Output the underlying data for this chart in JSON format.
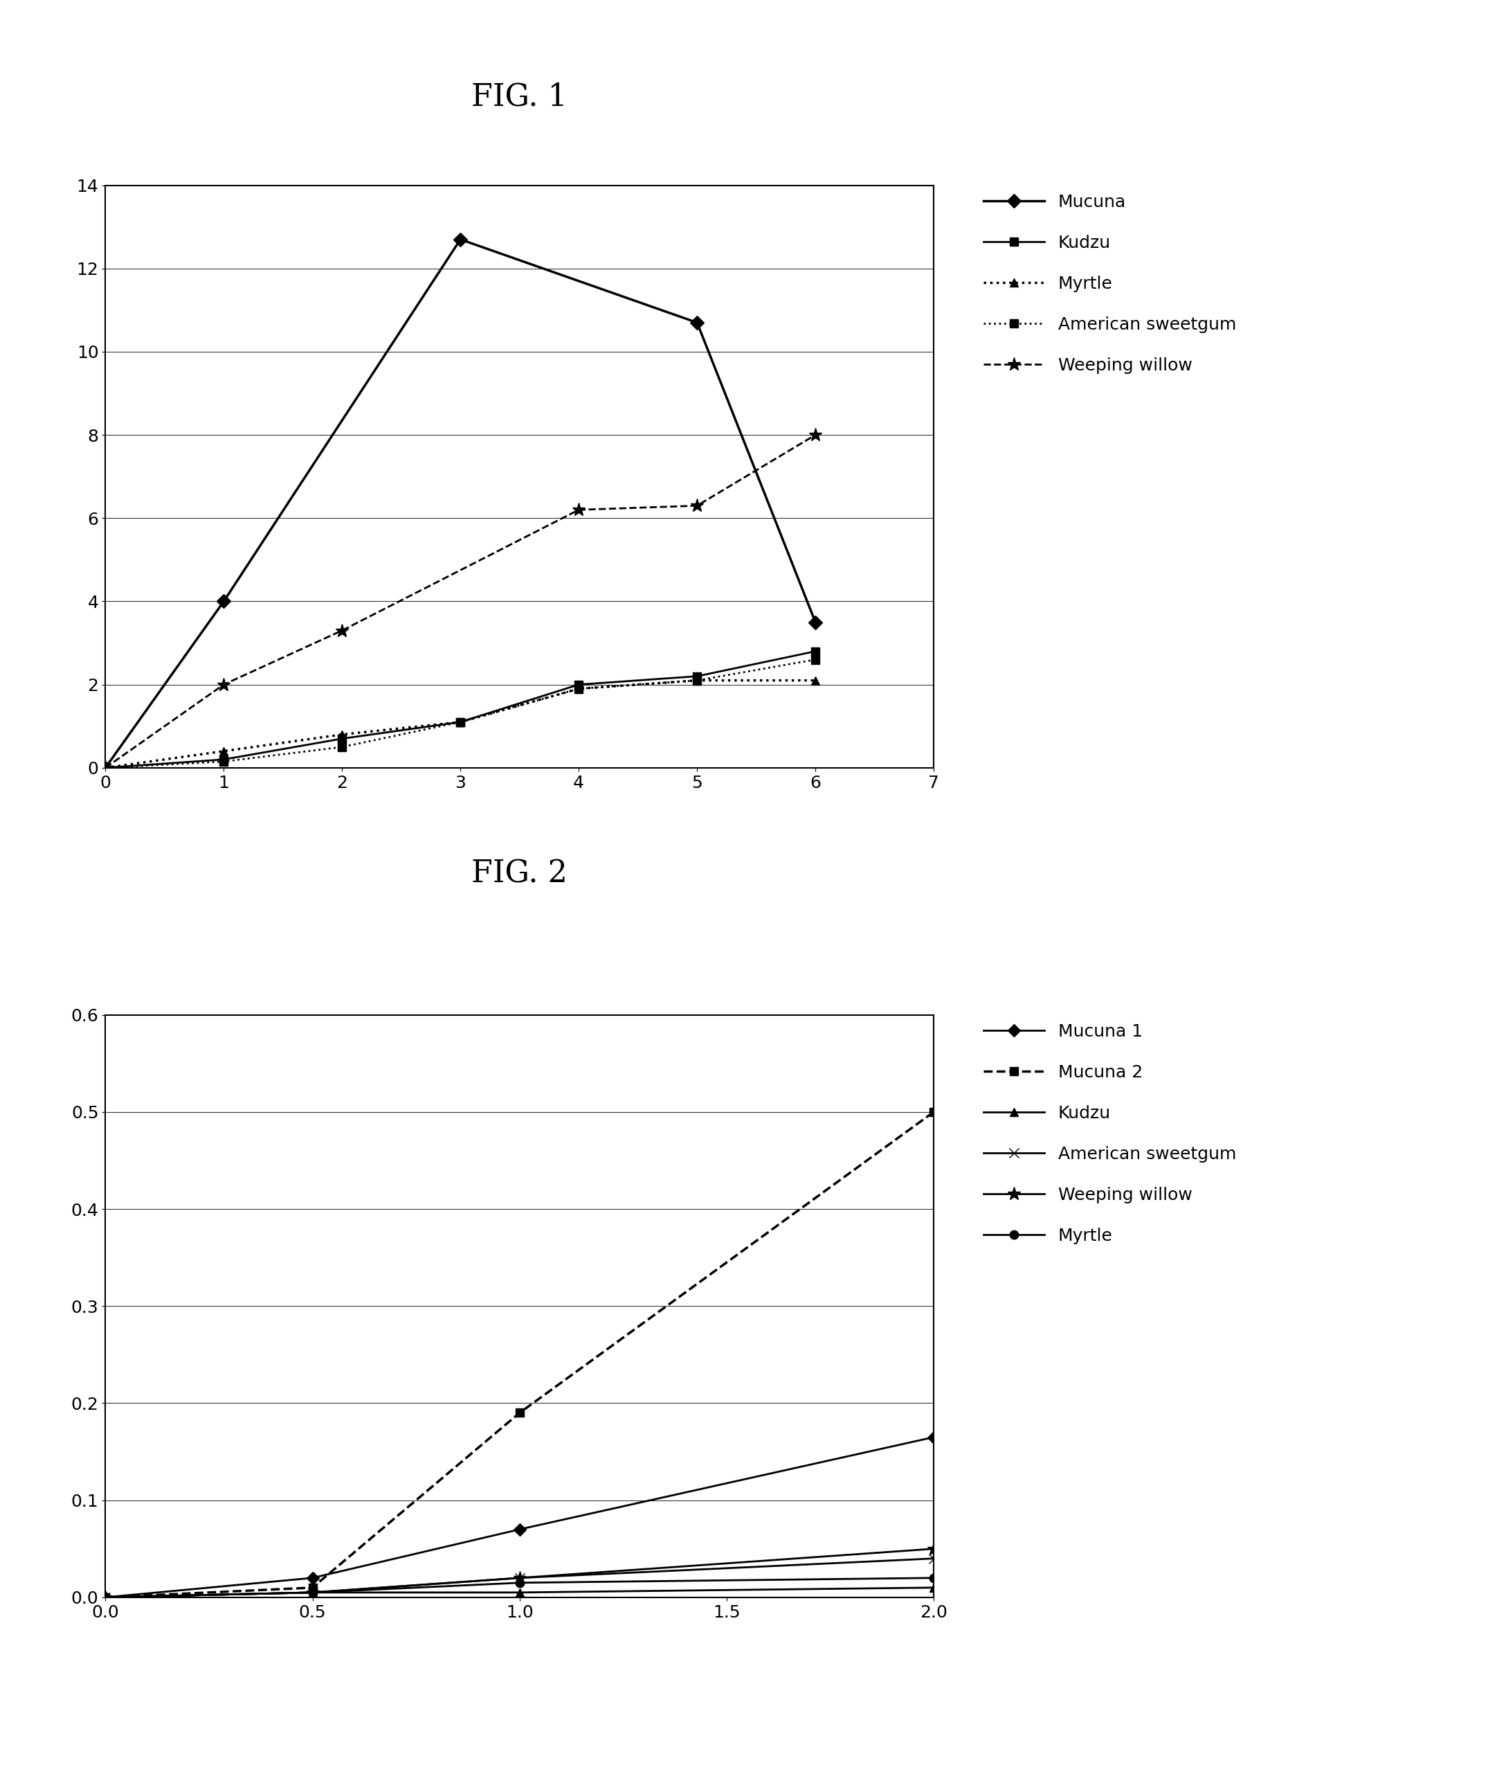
{
  "fig1": {
    "title": "FIG. 1",
    "title_fontsize": 32,
    "series": [
      {
        "label": "Mucuna",
        "x": [
          0,
          1,
          3,
          5,
          6
        ],
        "y": [
          0,
          4,
          12.7,
          10.7,
          3.5
        ],
        "linestyle": "-",
        "marker": "D",
        "markersize": 10,
        "linewidth": 2.5,
        "color": "black"
      },
      {
        "label": "Kudzu",
        "x": [
          0,
          1,
          2,
          3,
          4,
          5,
          6
        ],
        "y": [
          0,
          0.2,
          0.7,
          1.1,
          2.0,
          2.2,
          2.8
        ],
        "linestyle": "-",
        "marker": "s",
        "markersize": 9,
        "linewidth": 2.0,
        "color": "black"
      },
      {
        "label": "Myrtle",
        "x": [
          0,
          1,
          2,
          3,
          4,
          5,
          6
        ],
        "y": [
          0,
          0.4,
          0.8,
          1.1,
          1.9,
          2.1,
          2.1
        ],
        "linestyle": ":",
        "marker": "^",
        "markersize": 9,
        "linewidth": 2.5,
        "color": "black"
      },
      {
        "label": "American sweetgum",
        "x": [
          0,
          1,
          2,
          3,
          4,
          5,
          6
        ],
        "y": [
          0,
          0.15,
          0.5,
          1.1,
          1.9,
          2.1,
          2.6
        ],
        "linestyle": ":",
        "marker": "s",
        "markersize": 9,
        "linewidth": 2.0,
        "color": "black"
      },
      {
        "label": "Weeping willow",
        "x": [
          0,
          1,
          2,
          4,
          5,
          6
        ],
        "y": [
          0,
          2.0,
          3.3,
          6.2,
          6.3,
          8.0
        ],
        "linestyle": "--",
        "marker": "*",
        "markersize": 14,
        "linewidth": 2.0,
        "color": "black"
      }
    ],
    "xlim": [
      0,
      7
    ],
    "ylim": [
      0,
      14
    ],
    "xticks": [
      0,
      1,
      2,
      3,
      4,
      5,
      6,
      7
    ],
    "yticks": [
      0,
      2,
      4,
      6,
      8,
      10,
      12,
      14
    ]
  },
  "fig2": {
    "title": "FIG. 2",
    "title_fontsize": 32,
    "series": [
      {
        "label": "Mucuna 1",
        "x": [
          0,
          0.5,
          1,
          2
        ],
        "y": [
          0,
          0.02,
          0.07,
          0.165
        ],
        "linestyle": "-",
        "marker": "D",
        "markersize": 9,
        "linewidth": 2.0,
        "color": "black"
      },
      {
        "label": "Mucuna 2",
        "x": [
          0,
          0.5,
          1,
          2
        ],
        "y": [
          0,
          0.01,
          0.19,
          0.5
        ],
        "linestyle": "--",
        "marker": "s",
        "markersize": 9,
        "linewidth": 2.5,
        "color": "black"
      },
      {
        "label": "Kudzu",
        "x": [
          0,
          0.5,
          1,
          2
        ],
        "y": [
          0,
          0.005,
          0.005,
          0.01
        ],
        "linestyle": "-",
        "marker": "^",
        "markersize": 9,
        "linewidth": 2.0,
        "color": "black"
      },
      {
        "label": "American sweetgum",
        "x": [
          0,
          0.5,
          1,
          2
        ],
        "y": [
          0,
          0.005,
          0.02,
          0.04
        ],
        "linestyle": "-",
        "marker": "x",
        "markersize": 10,
        "linewidth": 2.0,
        "color": "black"
      },
      {
        "label": "Weeping willow",
        "x": [
          0,
          0.5,
          1,
          2
        ],
        "y": [
          0,
          0.005,
          0.02,
          0.05
        ],
        "linestyle": "-",
        "marker": "*",
        "markersize": 14,
        "linewidth": 2.0,
        "color": "black"
      },
      {
        "label": "Myrtle",
        "x": [
          0,
          0.5,
          1,
          2
        ],
        "y": [
          0,
          0.005,
          0.015,
          0.02
        ],
        "linestyle": "-",
        "marker": "o",
        "markersize": 9,
        "linewidth": 2.0,
        "color": "black"
      }
    ],
    "xlim": [
      0,
      2
    ],
    "ylim": [
      0,
      0.6
    ],
    "xticks": [
      0,
      0.5,
      1.0,
      1.5,
      2.0
    ],
    "yticks": [
      0.0,
      0.1,
      0.2,
      0.3,
      0.4,
      0.5,
      0.6
    ]
  },
  "background_color": "#ffffff",
  "tick_fontsize": 18,
  "legend_fontsize": 18,
  "title_fontsize": 32
}
